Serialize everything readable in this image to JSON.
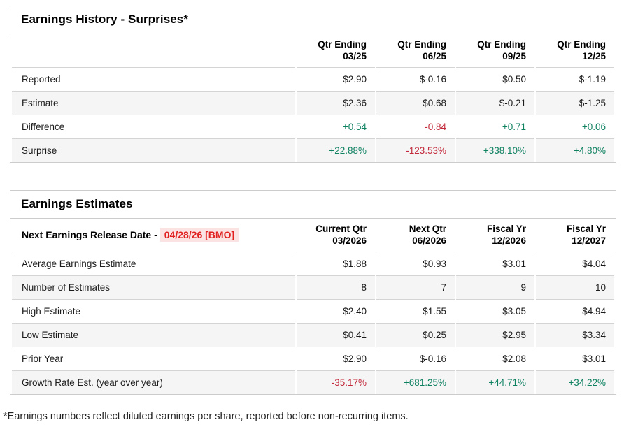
{
  "colors": {
    "positive": "#0e8161",
    "negative": "#c3293b",
    "release_date_text": "#e0201f",
    "release_date_bg": "#fce3e3",
    "table_border": "#cccccc",
    "row_stripe": "#f5f5f5"
  },
  "history": {
    "title": "Earnings History - Surprises*",
    "columns": [
      {
        "line1": "Qtr Ending",
        "line2": "03/25"
      },
      {
        "line1": "Qtr Ending",
        "line2": "06/25"
      },
      {
        "line1": "Qtr Ending",
        "line2": "09/25"
      },
      {
        "line1": "Qtr Ending",
        "line2": "12/25"
      }
    ],
    "rows": [
      {
        "label": "Reported",
        "cells": [
          "$2.90",
          "$-0.16",
          "$0.50",
          "$-1.19"
        ]
      },
      {
        "label": "Estimate",
        "cells": [
          "$2.36",
          "$0.68",
          "$-0.21",
          "$-1.25"
        ]
      },
      {
        "label": "Difference",
        "cells": [
          "+0.54",
          "-0.84",
          "+0.71",
          "+0.06"
        ]
      },
      {
        "label": "Surprise",
        "cells": [
          "+22.88%",
          "-123.53%",
          "+338.10%",
          "+4.80%"
        ]
      }
    ]
  },
  "estimates": {
    "title": "Earnings Estimates",
    "release_label": "Next Earnings Release Date -",
    "release_date": "04/28/26 [BMO]",
    "columns": [
      {
        "line1": "Current Qtr",
        "line2": "03/2026"
      },
      {
        "line1": "Next Qtr",
        "line2": "06/2026"
      },
      {
        "line1": "Fiscal Yr",
        "line2": "12/2026"
      },
      {
        "line1": "Fiscal Yr",
        "line2": "12/2027"
      }
    ],
    "rows": [
      {
        "label": "Average Earnings Estimate",
        "cells": [
          "$1.88",
          "$0.93",
          "$3.01",
          "$4.04"
        ]
      },
      {
        "label": "Number of Estimates",
        "cells": [
          "8",
          "7",
          "9",
          "10"
        ]
      },
      {
        "label": "High Estimate",
        "cells": [
          "$2.40",
          "$1.55",
          "$3.05",
          "$4.94"
        ]
      },
      {
        "label": "Low Estimate",
        "cells": [
          "$0.41",
          "$0.25",
          "$2.95",
          "$3.34"
        ]
      },
      {
        "label": "Prior Year",
        "cells": [
          "$2.90",
          "$-0.16",
          "$2.08",
          "$3.01"
        ]
      },
      {
        "label": "Growth Rate Est. (year over year)",
        "cells": [
          "-35.17%",
          "+681.25%",
          "+44.71%",
          "+34.22%"
        ]
      }
    ]
  },
  "footnote": "*Earnings numbers reflect diluted earnings per share, reported before non-recurring items."
}
